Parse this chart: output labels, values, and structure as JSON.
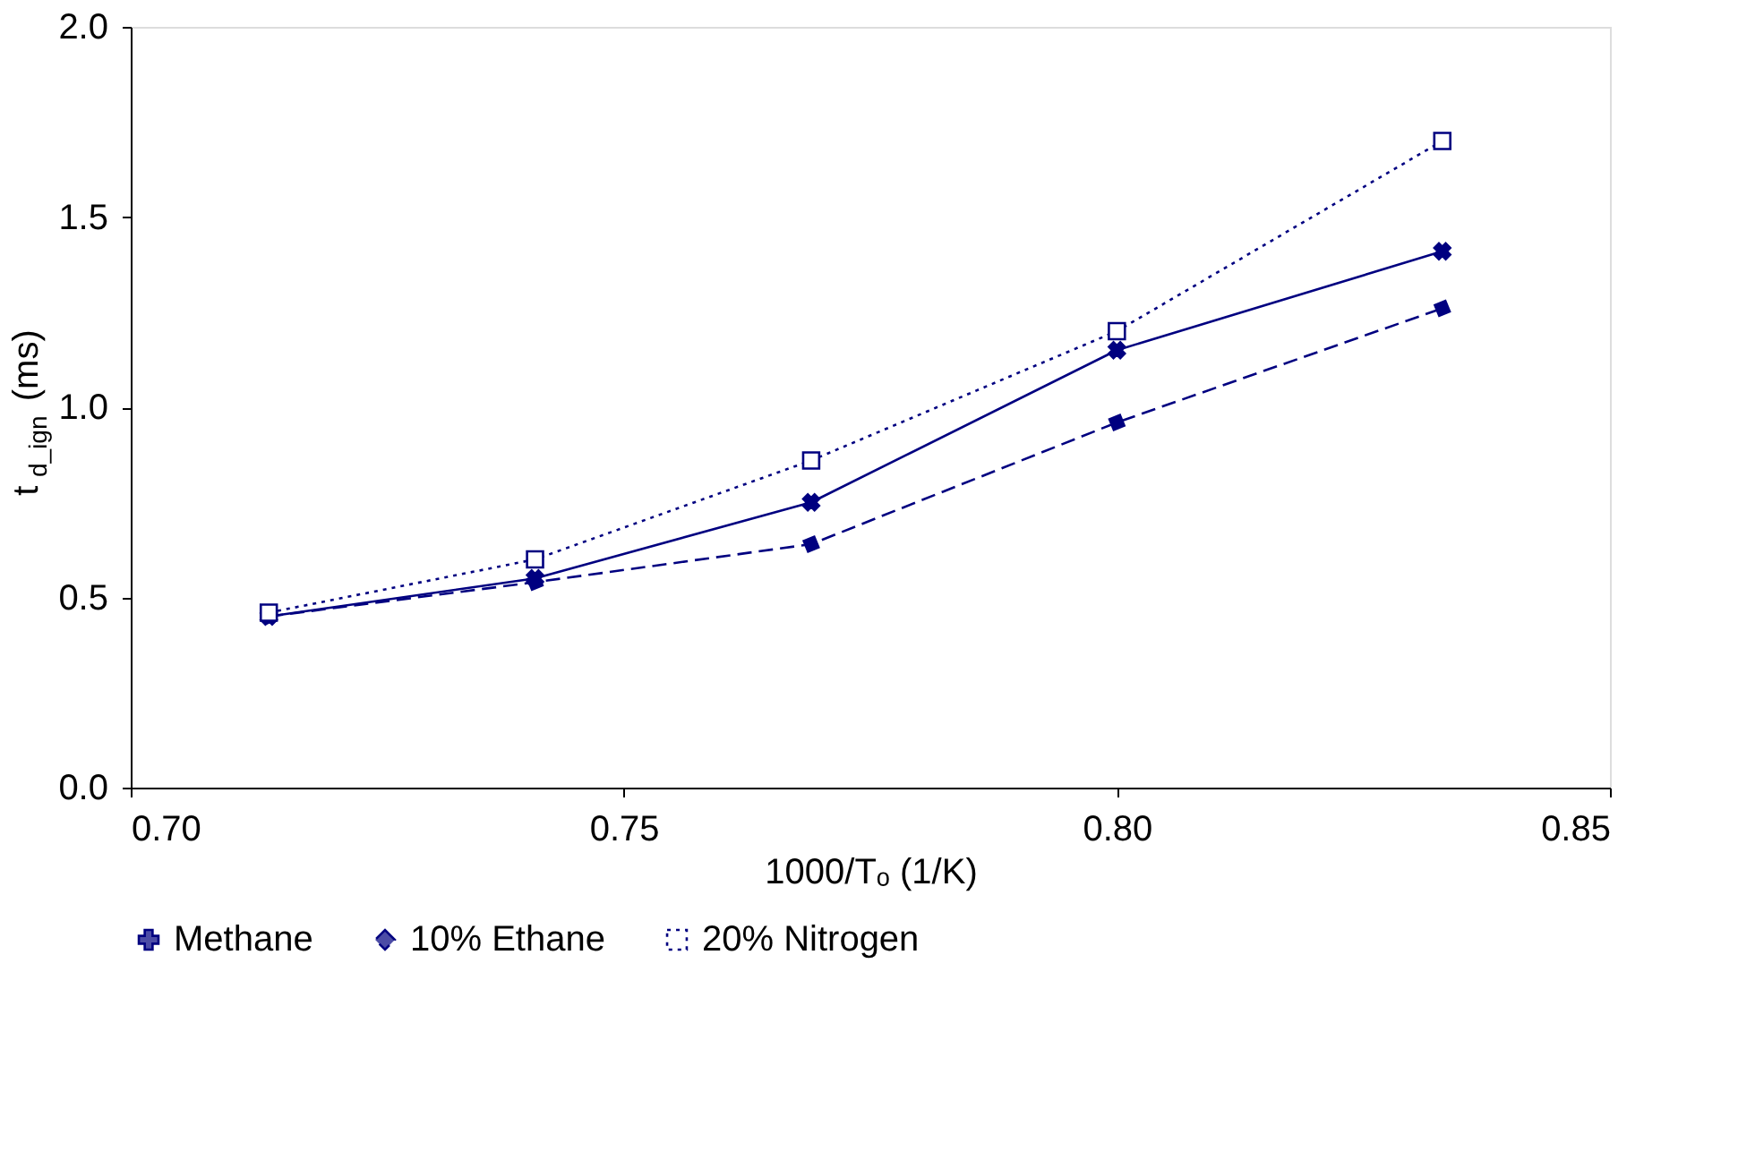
{
  "chart_data": {
    "type": "line",
    "xlabel": "1000/Tₒ (1/K)",
    "ylabel": "t$_{d_ign}$ (ms)",
    "x": [
      0.714,
      0.741,
      0.769,
      0.8,
      0.833
    ],
    "series": [
      {
        "name": "Methane",
        "color": "#000080",
        "values": [
          0.45,
          0.55,
          0.75,
          1.15,
          1.41
        ],
        "marker": "cross",
        "line_style": "solid"
      },
      {
        "name": "10% Ethane",
        "color": "#000080",
        "values": [
          0.45,
          0.54,
          0.64,
          0.96,
          1.26
        ],
        "marker": "diamond",
        "line_style": "dashed"
      },
      {
        "name": "20% Nitrogen",
        "color": "#000080",
        "values": [
          0.46,
          0.6,
          0.86,
          1.2,
          1.7
        ],
        "marker": "square",
        "line_style": "dotted"
      }
    ],
    "xlim": [
      0.7,
      0.85
    ],
    "xticks": [
      {
        "value": 0.7,
        "label": "0.70"
      },
      {
        "value": 0.75,
        "label": "0.75"
      },
      {
        "value": 0.8,
        "label": "0.80"
      },
      {
        "value": 0.85,
        "label": "0.85"
      }
    ],
    "ylim": [
      0,
      2
    ],
    "yticks": [
      {
        "value": 0,
        "label": "0.0"
      },
      {
        "value": 0.5,
        "label": "0.5"
      },
      {
        "value": 1,
        "label": "1.0"
      },
      {
        "value": 1.5,
        "label": "1.5"
      },
      {
        "value": 2,
        "label": "2.0"
      }
    ],
    "legend": "bottom"
  }
}
